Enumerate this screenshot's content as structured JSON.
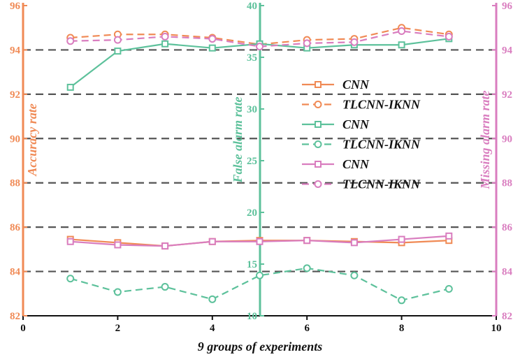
{
  "colors": {
    "orange": "#F08a55",
    "green": "#5DC19B",
    "pink": "#D97DBF",
    "grid": "#555555"
  },
  "chart_data": {
    "type": "line",
    "xlabel": "9 groups of experiments",
    "xlim": [
      0,
      10
    ],
    "xticks": [
      0,
      2,
      4,
      6,
      8,
      10
    ],
    "x": [
      1,
      2,
      3,
      4,
      5,
      6,
      7,
      8,
      9
    ],
    "axes": [
      {
        "id": "left",
        "label": "Accuracy rate",
        "color": "#F08a55",
        "ylim": [
          82,
          96
        ],
        "ticks": [
          82,
          84,
          86,
          88,
          90,
          92,
          94,
          96
        ]
      },
      {
        "id": "middle",
        "label": "False alarm rate",
        "color": "#5DC19B",
        "ylim": [
          10,
          40
        ],
        "ticks": [
          10,
          15,
          20,
          25,
          30,
          35,
          40
        ]
      },
      {
        "id": "right",
        "label": "Missing alarm rate",
        "color": "#D97DBF",
        "ylim": [
          82,
          96
        ],
        "ticks": [
          82,
          84,
          86,
          88,
          90,
          92,
          94,
          96
        ]
      }
    ],
    "grid": "horizontal dashed",
    "legend_position": "center-right",
    "series": [
      {
        "name": "CNN",
        "axis": "left",
        "color": "#F08a55",
        "marker": "square",
        "dash": false,
        "values": [
          85.45,
          85.3,
          85.15,
          85.35,
          85.4,
          85.4,
          85.35,
          85.3,
          85.4
        ]
      },
      {
        "name": "TLCNN-IKNN",
        "axis": "left",
        "color": "#F08a55",
        "marker": "circle",
        "dash": true,
        "values": [
          94.55,
          94.7,
          94.7,
          94.55,
          94.25,
          94.45,
          94.5,
          95.0,
          94.7
        ]
      },
      {
        "name": "CNN",
        "axis": "middle",
        "color": "#5DC19B",
        "marker": "square",
        "dash": false,
        "values": [
          32.1,
          35.6,
          36.3,
          35.9,
          36.3,
          35.9,
          36.2,
          36.2,
          36.8
        ]
      },
      {
        "name": "TLCNN-IKNN",
        "axis": "middle",
        "color": "#5DC19B",
        "marker": "circle",
        "dash": true,
        "values": [
          13.6,
          12.3,
          12.8,
          11.6,
          13.9,
          14.6,
          13.9,
          11.5,
          12.6
        ]
      },
      {
        "name": "CNN",
        "axis": "right",
        "color": "#D97DBF",
        "marker": "square",
        "dash": false,
        "values": [
          85.35,
          85.2,
          85.15,
          85.35,
          85.35,
          85.4,
          85.3,
          85.45,
          85.6
        ]
      },
      {
        "name": "TLCNN-IKNN",
        "axis": "right",
        "color": "#D97DBF",
        "marker": "circle",
        "dash": true,
        "values": [
          94.4,
          94.45,
          94.6,
          94.5,
          94.15,
          94.3,
          94.35,
          94.85,
          94.6
        ]
      }
    ]
  }
}
